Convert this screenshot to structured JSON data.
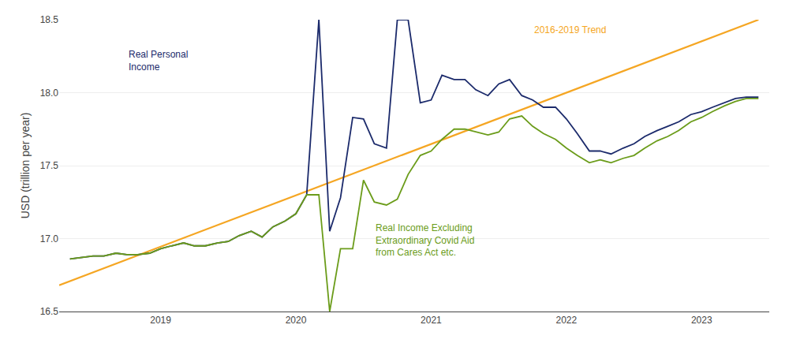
{
  "chart_data": {
    "type": "line",
    "ylabel": "USD (trillion per year)",
    "xlim": [
      2018.25,
      2023.5
    ],
    "ylim": [
      16.5,
      18.5
    ],
    "xticks": [
      2019,
      2020,
      2021,
      2022,
      2023
    ],
    "yticks": [
      16.5,
      {
        "value": 17.0,
        "label": "17.0"
      },
      17.5,
      {
        "value": 18.0,
        "label": "18.0"
      },
      18.5
    ],
    "grid": true,
    "series": [
      {
        "color": "#F5A623",
        "x": [
          2018.25,
          2023.42
        ],
        "values": [
          16.68,
          18.5
        ]
      },
      {
        "color": "#1B2A6B",
        "x": [
          2018.33,
          2018.42,
          2018.5,
          2018.58,
          2018.67,
          2018.75,
          2018.83,
          2018.92,
          2019.0,
          2019.08,
          2019.17,
          2019.25,
          2019.33,
          2019.42,
          2019.5,
          2019.58,
          2019.67,
          2019.75,
          2019.83,
          2019.92,
          2020.0,
          2020.08,
          2020.17,
          2020.25,
          2020.33,
          2020.42,
          2020.5,
          2020.58,
          2020.67,
          2020.75,
          2020.83,
          2020.92,
          2021.0,
          2021.08,
          2021.17,
          2021.25,
          2021.33,
          2021.42,
          2021.5,
          2021.58,
          2021.67,
          2021.75,
          2021.83,
          2021.92,
          2022.0,
          2022.08,
          2022.17,
          2022.25,
          2022.33,
          2022.42,
          2022.5,
          2022.58,
          2022.67,
          2022.75,
          2022.83,
          2022.92,
          2023.0,
          2023.08,
          2023.17,
          2023.25,
          2023.33,
          2023.42
        ],
        "values": [
          16.86,
          16.87,
          16.88,
          16.88,
          16.9,
          16.89,
          16.89,
          16.9,
          16.93,
          16.95,
          16.97,
          16.95,
          16.95,
          16.97,
          16.98,
          17.02,
          17.05,
          17.01,
          17.08,
          17.12,
          17.17,
          17.3,
          18.5,
          17.05,
          17.28,
          17.83,
          17.82,
          17.65,
          17.62,
          18.5,
          18.5,
          17.93,
          17.95,
          18.12,
          18.09,
          18.09,
          18.02,
          17.98,
          18.06,
          18.09,
          17.98,
          17.95,
          17.9,
          17.9,
          17.82,
          17.72,
          17.6,
          17.6,
          17.58,
          17.62,
          17.65,
          17.7,
          17.74,
          17.77,
          17.8,
          17.85,
          17.87,
          17.9,
          17.93,
          17.96,
          17.97,
          17.97
        ]
      },
      {
        "color": "#6B9C1A",
        "x": [
          2018.33,
          2018.42,
          2018.5,
          2018.58,
          2018.67,
          2018.75,
          2018.83,
          2018.92,
          2019.0,
          2019.08,
          2019.17,
          2019.25,
          2019.33,
          2019.42,
          2019.5,
          2019.58,
          2019.67,
          2019.75,
          2019.83,
          2019.92,
          2020.0,
          2020.08,
          2020.17,
          2020.25,
          2020.33,
          2020.42,
          2020.5,
          2020.58,
          2020.67,
          2020.75,
          2020.83,
          2020.92,
          2021.0,
          2021.08,
          2021.17,
          2021.25,
          2021.33,
          2021.42,
          2021.5,
          2021.58,
          2021.67,
          2021.75,
          2021.83,
          2021.92,
          2022.0,
          2022.08,
          2022.17,
          2022.25,
          2022.33,
          2022.42,
          2022.5,
          2022.58,
          2022.67,
          2022.75,
          2022.83,
          2022.92,
          2023.0,
          2023.08,
          2023.17,
          2023.25,
          2023.33,
          2023.42
        ],
        "values": [
          16.86,
          16.87,
          16.88,
          16.88,
          16.9,
          16.89,
          16.89,
          16.9,
          16.93,
          16.95,
          16.97,
          16.95,
          16.95,
          16.97,
          16.98,
          17.02,
          17.05,
          17.01,
          17.08,
          17.12,
          17.17,
          17.3,
          17.3,
          16.5,
          16.93,
          16.93,
          17.4,
          17.25,
          17.23,
          17.27,
          17.44,
          17.57,
          17.6,
          17.68,
          17.75,
          17.75,
          17.73,
          17.71,
          17.73,
          17.82,
          17.84,
          17.77,
          17.72,
          17.68,
          17.62,
          17.57,
          17.52,
          17.54,
          17.52,
          17.55,
          17.57,
          17.62,
          17.67,
          17.7,
          17.74,
          17.8,
          17.83,
          17.87,
          17.91,
          17.94,
          17.96,
          17.96
        ]
      }
    ],
    "annotations": [
      {
        "text": "Real Personal\nIncome",
        "x": 2018.75,
        "y": 18.22,
        "color": "#1B2A6B"
      },
      {
        "text": "Real Income Excluding\nExtraordinary Covid Aid\nfrom Cares Act etc.",
        "x": 2020.58,
        "y": 17.12,
        "color": "#6B9C1A"
      },
      {
        "text": "2016-2019 Trend",
        "x": 2021.75,
        "y": 18.38,
        "color": "#F5A623"
      }
    ]
  }
}
